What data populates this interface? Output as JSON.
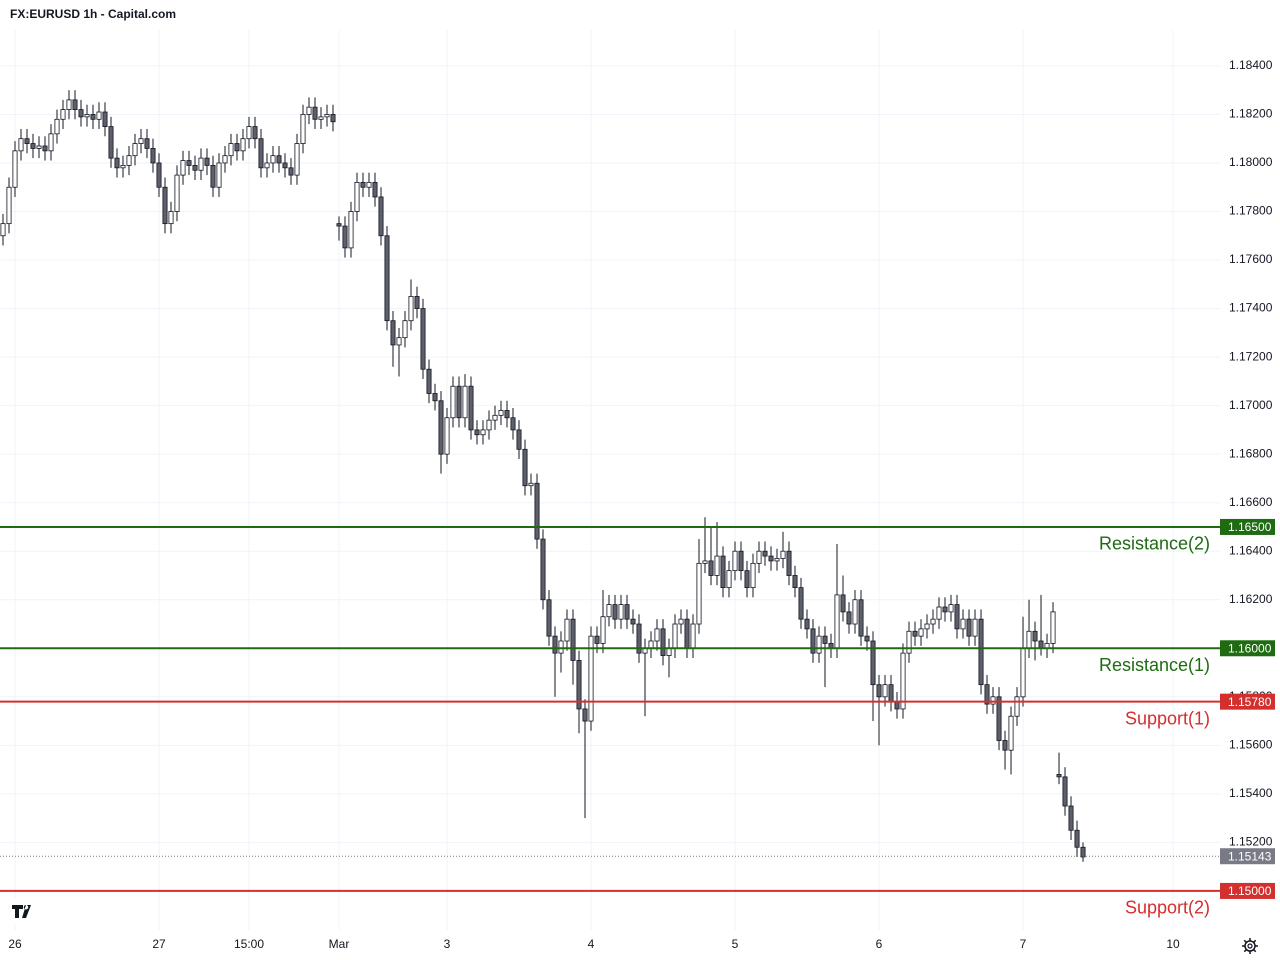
{
  "chart_data": {
    "type": "candlestick",
    "title": "FX:EURUSD 1h - Capital.com",
    "up_color": "#ffffff",
    "down_color": "#5d606b",
    "outline_color": "#131722",
    "grid": true,
    "xlim": [
      -0.5,
      202.83
    ],
    "xticks": [
      {
        "value": 2,
        "label": "26"
      },
      {
        "value": 26,
        "label": "27"
      },
      {
        "value": 41,
        "label": "15:00"
      },
      {
        "value": 56,
        "label": "Mar"
      },
      {
        "value": 74,
        "label": "3"
      },
      {
        "value": 98,
        "label": "4"
      },
      {
        "value": 122,
        "label": "5"
      },
      {
        "value": 146,
        "label": "6"
      },
      {
        "value": 170,
        "label": "7"
      },
      {
        "value": 195,
        "label": "10"
      }
    ],
    "ylim": [
      1.14839,
      1.18548
    ],
    "yticks": [
      {
        "value": 1.184,
        "label": "1.18400"
      },
      {
        "value": 1.182,
        "label": "1.18200"
      },
      {
        "value": 1.18,
        "label": "1.18000"
      },
      {
        "value": 1.178,
        "label": "1.17800"
      },
      {
        "value": 1.176,
        "label": "1.17600"
      },
      {
        "value": 1.174,
        "label": "1.17400"
      },
      {
        "value": 1.172,
        "label": "1.17200"
      },
      {
        "value": 1.17,
        "label": "1.17000"
      },
      {
        "value": 1.168,
        "label": "1.16800"
      },
      {
        "value": 1.166,
        "label": "1.16600"
      },
      {
        "value": 1.164,
        "label": "1.16400"
      },
      {
        "value": 1.162,
        "label": "1.16200"
      },
      {
        "value": 1.158,
        "label": "1.15800"
      },
      {
        "value": 1.156,
        "label": "1.15600"
      },
      {
        "value": 1.154,
        "label": "1.15400"
      },
      {
        "value": 1.152,
        "label": "1.15200"
      }
    ],
    "levels": [
      {
        "name": "Resistance(2)",
        "price": {
          "value": 1.165,
          "label": "1.16500"
        },
        "color": "#1e6b12"
      },
      {
        "name": "Resistance(1)",
        "price": {
          "value": 1.16,
          "label": "1.16000"
        },
        "color": "#1e6b12"
      },
      {
        "name": "Support(1)",
        "price": {
          "value": 1.1578,
          "label": "1.15780"
        },
        "color": "#d32f2f"
      },
      {
        "name": "Support(2)",
        "price": {
          "value": 1.15,
          "label": "1.15000"
        },
        "color": "#d32f2f"
      }
    ],
    "last_price": {
      "value": 1.15143,
      "label": "1.15143",
      "color": "#787b86"
    },
    "candles": [
      [
        1.177,
        1.1779,
        1.1766,
        1.1775
      ],
      [
        1.1775,
        1.1794,
        1.1771,
        1.179
      ],
      [
        1.179,
        1.1809,
        1.1786,
        1.1805
      ],
      [
        1.1805,
        1.1814,
        1.1801,
        1.181
      ],
      [
        1.181,
        1.1814,
        1.1804,
        1.1808
      ],
      [
        1.1808,
        1.1812,
        1.1802,
        1.1806
      ],
      [
        1.1806,
        1.1811,
        1.1802,
        1.1807
      ],
      [
        1.1807,
        1.1811,
        1.1801,
        1.1805
      ],
      [
        1.1805,
        1.1816,
        1.1801,
        1.1812
      ],
      [
        1.1812,
        1.1822,
        1.1808,
        1.1818
      ],
      [
        1.1818,
        1.1826,
        1.1814,
        1.1822
      ],
      [
        1.1822,
        1.183,
        1.1818,
        1.1826
      ],
      [
        1.1826,
        1.183,
        1.1818,
        1.1822
      ],
      [
        1.1822,
        1.1826,
        1.1815,
        1.1819
      ],
      [
        1.1819,
        1.1824,
        1.1815,
        1.182
      ],
      [
        1.182,
        1.1824,
        1.1814,
        1.1818
      ],
      [
        1.1818,
        1.1825,
        1.1814,
        1.1821
      ],
      [
        1.1821,
        1.1825,
        1.1811,
        1.1815
      ],
      [
        1.1815,
        1.1819,
        1.1798,
        1.1802
      ],
      [
        1.1802,
        1.1806,
        1.1794,
        1.1798
      ],
      [
        1.1798,
        1.1803,
        1.1794,
        1.1799
      ],
      [
        1.1799,
        1.1807,
        1.1795,
        1.1803
      ],
      [
        1.1803,
        1.1812,
        1.1799,
        1.1808
      ],
      [
        1.1808,
        1.1814,
        1.1804,
        1.181
      ],
      [
        1.181,
        1.1814,
        1.1802,
        1.1806
      ],
      [
        1.1806,
        1.181,
        1.1796,
        1.18
      ],
      [
        1.18,
        1.1804,
        1.1786,
        1.179
      ],
      [
        1.179,
        1.1794,
        1.1771,
        1.1775
      ],
      [
        1.1775,
        1.1784,
        1.1771,
        1.178
      ],
      [
        1.178,
        1.1799,
        1.1776,
        1.1795
      ],
      [
        1.1795,
        1.1805,
        1.1791,
        1.1801
      ],
      [
        1.1801,
        1.1805,
        1.1795,
        1.1799
      ],
      [
        1.1799,
        1.1803,
        1.1793,
        1.1797
      ],
      [
        1.1797,
        1.1806,
        1.1793,
        1.1802
      ],
      [
        1.1802,
        1.1806,
        1.1795,
        1.1799
      ],
      [
        1.1799,
        1.1803,
        1.1786,
        1.179
      ],
      [
        1.179,
        1.1804,
        1.1786,
        1.18
      ],
      [
        1.18,
        1.1807,
        1.1796,
        1.1803
      ],
      [
        1.1803,
        1.1812,
        1.1799,
        1.1808
      ],
      [
        1.1808,
        1.1812,
        1.1801,
        1.1805
      ],
      [
        1.1805,
        1.1814,
        1.1801,
        1.181
      ],
      [
        1.181,
        1.1819,
        1.1806,
        1.1815
      ],
      [
        1.1815,
        1.1819,
        1.1806,
        1.181
      ],
      [
        1.181,
        1.1814,
        1.1794,
        1.1798
      ],
      [
        1.1798,
        1.1804,
        1.1794,
        1.18
      ],
      [
        1.18,
        1.1807,
        1.1796,
        1.1803
      ],
      [
        1.1803,
        1.1807,
        1.1796,
        1.18
      ],
      [
        1.18,
        1.1804,
        1.1794,
        1.1798
      ],
      [
        1.1798,
        1.1802,
        1.1791,
        1.1795
      ],
      [
        1.1795,
        1.1812,
        1.1791,
        1.1808
      ],
      [
        1.1808,
        1.1824,
        1.1804,
        1.182
      ],
      [
        1.182,
        1.1827,
        1.1816,
        1.1823
      ],
      [
        1.1823,
        1.1827,
        1.1814,
        1.1818
      ],
      [
        1.1818,
        1.1823,
        1.1814,
        1.1819
      ],
      [
        1.1819,
        1.1824,
        1.1815,
        1.182
      ],
      [
        1.182,
        1.1824,
        1.1813,
        1.1817
      ],
      [
        1.1775,
        1.1778,
        1.1768,
        1.1774
      ],
      [
        1.1774,
        1.1778,
        1.1761,
        1.1765
      ],
      [
        1.1765,
        1.1784,
        1.1761,
        1.178
      ],
      [
        1.178,
        1.1796,
        1.1776,
        1.1792
      ],
      [
        1.1792,
        1.1796,
        1.1786,
        1.179
      ],
      [
        1.179,
        1.1796,
        1.1786,
        1.1792
      ],
      [
        1.1792,
        1.1796,
        1.1782,
        1.1786
      ],
      [
        1.1786,
        1.179,
        1.1766,
        1.177
      ],
      [
        1.177,
        1.1774,
        1.1731,
        1.1735
      ],
      [
        1.1735,
        1.1739,
        1.1716,
        1.1725
      ],
      [
        1.1725,
        1.1732,
        1.1712,
        1.1728
      ],
      [
        1.1728,
        1.1739,
        1.1724,
        1.1735
      ],
      [
        1.1735,
        1.1752,
        1.1731,
        1.1745
      ],
      [
        1.1745,
        1.1749,
        1.1736,
        1.174
      ],
      [
        1.174,
        1.1744,
        1.1711,
        1.1715
      ],
      [
        1.1715,
        1.1719,
        1.1701,
        1.1705
      ],
      [
        1.1705,
        1.1709,
        1.1698,
        1.1702
      ],
      [
        1.1702,
        1.1706,
        1.1672,
        1.168
      ],
      [
        1.168,
        1.1699,
        1.1676,
        1.1695
      ],
      [
        1.1695,
        1.1712,
        1.1691,
        1.1708
      ],
      [
        1.1708,
        1.1712,
        1.1691,
        1.1695
      ],
      [
        1.1695,
        1.1713,
        1.1691,
        1.1708
      ],
      [
        1.1708,
        1.1712,
        1.1686,
        1.169
      ],
      [
        1.169,
        1.1694,
        1.1684,
        1.1688
      ],
      [
        1.1688,
        1.1694,
        1.1684,
        1.169
      ],
      [
        1.169,
        1.1698,
        1.1686,
        1.1694
      ],
      [
        1.1694,
        1.17,
        1.169,
        1.1696
      ],
      [
        1.1696,
        1.1702,
        1.1692,
        1.1698
      ],
      [
        1.1698,
        1.1702,
        1.1691,
        1.1695
      ],
      [
        1.1695,
        1.1699,
        1.1686,
        1.169
      ],
      [
        1.169,
        1.1694,
        1.1678,
        1.1682
      ],
      [
        1.1682,
        1.1686,
        1.1663,
        1.1667
      ],
      [
        1.1667,
        1.1672,
        1.1663,
        1.1668
      ],
      [
        1.1668,
        1.1672,
        1.1641,
        1.1645
      ],
      [
        1.1645,
        1.1649,
        1.1616,
        1.162
      ],
      [
        1.162,
        1.1624,
        1.1601,
        1.1605
      ],
      [
        1.1605,
        1.1609,
        1.158,
        1.1598
      ],
      [
        1.1598,
        1.1607,
        1.159,
        1.1603
      ],
      [
        1.1603,
        1.1616,
        1.1599,
        1.1612
      ],
      [
        1.1612,
        1.1616,
        1.1585,
        1.1595
      ],
      [
        1.1595,
        1.1599,
        1.1565,
        1.1575
      ],
      [
        1.1575,
        1.1579,
        1.153,
        1.157
      ],
      [
        1.157,
        1.1609,
        1.1566,
        1.1605
      ],
      [
        1.1605,
        1.1609,
        1.1598,
        1.1602
      ],
      [
        1.1602,
        1.1624,
        1.1598,
        1.1613
      ],
      [
        1.1613,
        1.1622,
        1.1609,
        1.1618
      ],
      [
        1.1618,
        1.1622,
        1.1608,
        1.1612
      ],
      [
        1.1612,
        1.1622,
        1.1608,
        1.1618
      ],
      [
        1.1618,
        1.1622,
        1.1608,
        1.1612
      ],
      [
        1.1612,
        1.1616,
        1.1606,
        1.161
      ],
      [
        1.161,
        1.1614,
        1.1594,
        1.1598
      ],
      [
        1.1598,
        1.1604,
        1.1572,
        1.16
      ],
      [
        1.16,
        1.1607,
        1.1596,
        1.1603
      ],
      [
        1.1603,
        1.1612,
        1.1599,
        1.1608
      ],
      [
        1.1608,
        1.1612,
        1.1593,
        1.1597
      ],
      [
        1.1597,
        1.1604,
        1.1588,
        1.16
      ],
      [
        1.16,
        1.1614,
        1.1596,
        1.161
      ],
      [
        1.161,
        1.1616,
        1.1606,
        1.1612
      ],
      [
        1.1612,
        1.1616,
        1.1596,
        1.16
      ],
      [
        1.16,
        1.1614,
        1.1596,
        1.161
      ],
      [
        1.161,
        1.1645,
        1.1606,
        1.1635
      ],
      [
        1.1635,
        1.1654,
        1.1631,
        1.1636
      ],
      [
        1.1636,
        1.165,
        1.1626,
        1.163
      ],
      [
        1.163,
        1.1652,
        1.1626,
        1.1638
      ],
      [
        1.1638,
        1.1642,
        1.1621,
        1.1625
      ],
      [
        1.1625,
        1.1636,
        1.1621,
        1.1632
      ],
      [
        1.1632,
        1.1644,
        1.1628,
        1.164
      ],
      [
        1.164,
        1.1644,
        1.1628,
        1.1632
      ],
      [
        1.1632,
        1.1636,
        1.1621,
        1.1625
      ],
      [
        1.1625,
        1.1639,
        1.1621,
        1.1635
      ],
      [
        1.1635,
        1.1644,
        1.1631,
        1.164
      ],
      [
        1.164,
        1.1644,
        1.1634,
        1.1638
      ],
      [
        1.1638,
        1.1642,
        1.1632,
        1.1636
      ],
      [
        1.1636,
        1.1641,
        1.1632,
        1.1637
      ],
      [
        1.1637,
        1.1648,
        1.1633,
        1.164
      ],
      [
        1.164,
        1.1644,
        1.1626,
        1.163
      ],
      [
        1.163,
        1.1634,
        1.1621,
        1.1625
      ],
      [
        1.1625,
        1.1629,
        1.1608,
        1.1612
      ],
      [
        1.1612,
        1.1616,
        1.1604,
        1.1608
      ],
      [
        1.1608,
        1.1612,
        1.1594,
        1.1598
      ],
      [
        1.1598,
        1.1609,
        1.1594,
        1.1605
      ],
      [
        1.1605,
        1.1609,
        1.1584,
        1.1602
      ],
      [
        1.1602,
        1.1606,
        1.1596,
        1.16
      ],
      [
        1.16,
        1.1643,
        1.1596,
        1.1622
      ],
      [
        1.1622,
        1.163,
        1.1611,
        1.1615
      ],
      [
        1.1615,
        1.1619,
        1.1606,
        1.161
      ],
      [
        1.161,
        1.1624,
        1.1606,
        1.162
      ],
      [
        1.162,
        1.1624,
        1.1601,
        1.1605
      ],
      [
        1.1605,
        1.1609,
        1.1599,
        1.1603
      ],
      [
        1.1603,
        1.1607,
        1.157,
        1.1585
      ],
      [
        1.1585,
        1.1589,
        1.156,
        1.158
      ],
      [
        1.158,
        1.1589,
        1.1576,
        1.1585
      ],
      [
        1.1585,
        1.1589,
        1.1574,
        1.1578
      ],
      [
        1.1578,
        1.1582,
        1.1571,
        1.1575
      ],
      [
        1.1575,
        1.1602,
        1.1571,
        1.1598
      ],
      [
        1.1598,
        1.1611,
        1.1594,
        1.1607
      ],
      [
        1.1607,
        1.1611,
        1.1601,
        1.1605
      ],
      [
        1.1605,
        1.1612,
        1.1601,
        1.1608
      ],
      [
        1.1608,
        1.1614,
        1.1604,
        1.161
      ],
      [
        1.161,
        1.1616,
        1.1606,
        1.1612
      ],
      [
        1.1612,
        1.1621,
        1.1608,
        1.1617
      ],
      [
        1.1617,
        1.1621,
        1.1611,
        1.1615
      ],
      [
        1.1615,
        1.1622,
        1.1611,
        1.1618
      ],
      [
        1.1618,
        1.1622,
        1.1604,
        1.1608
      ],
      [
        1.1608,
        1.1616,
        1.1604,
        1.1612
      ],
      [
        1.1612,
        1.1616,
        1.1601,
        1.1605
      ],
      [
        1.1605,
        1.1616,
        1.1601,
        1.1612
      ],
      [
        1.1612,
        1.1616,
        1.1581,
        1.1585
      ],
      [
        1.1585,
        1.1589,
        1.1573,
        1.1577
      ],
      [
        1.1577,
        1.1584,
        1.1573,
        1.158
      ],
      [
        1.158,
        1.1584,
        1.1558,
        1.1562
      ],
      [
        1.1562,
        1.1566,
        1.155,
        1.1558
      ],
      [
        1.1558,
        1.1576,
        1.1548,
        1.1572
      ],
      [
        1.1572,
        1.1584,
        1.1568,
        1.158
      ],
      [
        1.158,
        1.1613,
        1.1576,
        1.16
      ],
      [
        1.16,
        1.162,
        1.1596,
        1.1607
      ],
      [
        1.1607,
        1.1611,
        1.1595,
        1.1603
      ],
      [
        1.1603,
        1.1622,
        1.1597,
        1.16
      ],
      [
        1.16,
        1.1606,
        1.1596,
        1.1602
      ],
      [
        1.1602,
        1.1619,
        1.1598,
        1.1615
      ],
      [
        1.1548,
        1.1557,
        1.1544,
        1.1547
      ],
      [
        1.1547,
        1.1551,
        1.1531,
        1.1535
      ],
      [
        1.1535,
        1.1539,
        1.1521,
        1.1525
      ],
      [
        1.1525,
        1.1529,
        1.1514,
        1.1518
      ],
      [
        1.1518,
        1.152,
        1.1512,
        1.1514
      ]
    ]
  }
}
